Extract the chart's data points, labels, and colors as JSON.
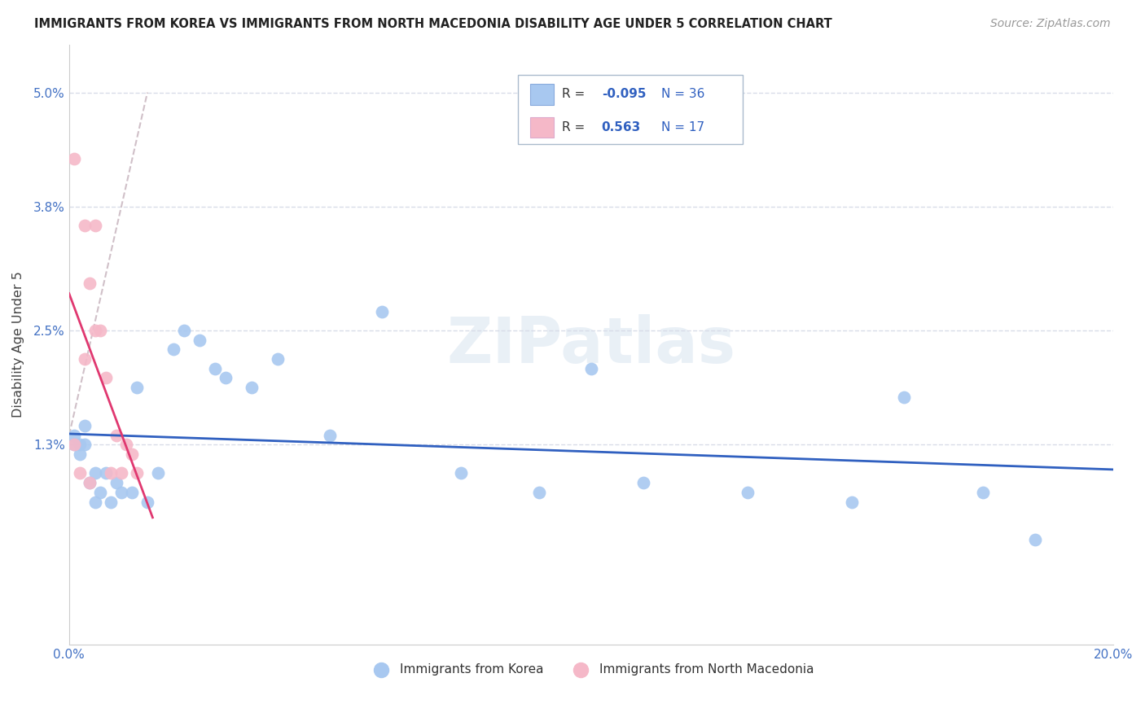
{
  "title": "IMMIGRANTS FROM KOREA VS IMMIGRANTS FROM NORTH MACEDONIA DISABILITY AGE UNDER 5 CORRELATION CHART",
  "source": "Source: ZipAtlas.com",
  "ylabel": "Disability Age Under 5",
  "xlim": [
    0.0,
    0.2
  ],
  "ylim": [
    -0.008,
    0.055
  ],
  "ytick_vals": [
    0.013,
    0.025,
    0.038,
    0.05
  ],
  "ytick_labels": [
    "1.3%",
    "2.5%",
    "3.8%",
    "5.0%"
  ],
  "xtick_vals": [
    0.0,
    0.05,
    0.1,
    0.15,
    0.2
  ],
  "xtick_labels": [
    "0.0%",
    "",
    "",
    "",
    "20.0%"
  ],
  "korea_R": -0.095,
  "korea_N": 36,
  "macedonia_R": 0.563,
  "macedonia_N": 17,
  "korea_color": "#a8c8f0",
  "macedonia_color": "#f5b8c8",
  "korea_line_color": "#3060c0",
  "macedonia_line_color": "#e03870",
  "dash_color": "#d0c0c8",
  "watermark": "ZIPatlas",
  "background_color": "#ffffff",
  "korea_x": [
    0.001,
    0.001,
    0.002,
    0.002,
    0.003,
    0.003,
    0.004,
    0.005,
    0.005,
    0.006,
    0.007,
    0.008,
    0.009,
    0.01,
    0.012,
    0.013,
    0.015,
    0.017,
    0.02,
    0.022,
    0.025,
    0.028,
    0.03,
    0.035,
    0.04,
    0.05,
    0.06,
    0.075,
    0.09,
    0.1,
    0.11,
    0.13,
    0.15,
    0.16,
    0.175,
    0.185
  ],
  "korea_y": [
    0.013,
    0.014,
    0.012,
    0.013,
    0.015,
    0.013,
    0.009,
    0.007,
    0.01,
    0.008,
    0.01,
    0.007,
    0.009,
    0.008,
    0.008,
    0.019,
    0.007,
    0.01,
    0.023,
    0.025,
    0.024,
    0.021,
    0.02,
    0.019,
    0.022,
    0.014,
    0.027,
    0.01,
    0.008,
    0.021,
    0.009,
    0.008,
    0.007,
    0.018,
    0.008,
    0.003
  ],
  "macedonia_x": [
    0.001,
    0.001,
    0.002,
    0.003,
    0.003,
    0.004,
    0.004,
    0.005,
    0.005,
    0.006,
    0.007,
    0.008,
    0.009,
    0.01,
    0.011,
    0.012,
    0.013
  ],
  "macedonia_y": [
    0.013,
    0.043,
    0.01,
    0.022,
    0.036,
    0.03,
    0.009,
    0.025,
    0.036,
    0.025,
    0.02,
    0.01,
    0.014,
    0.01,
    0.013,
    0.012,
    0.01
  ]
}
